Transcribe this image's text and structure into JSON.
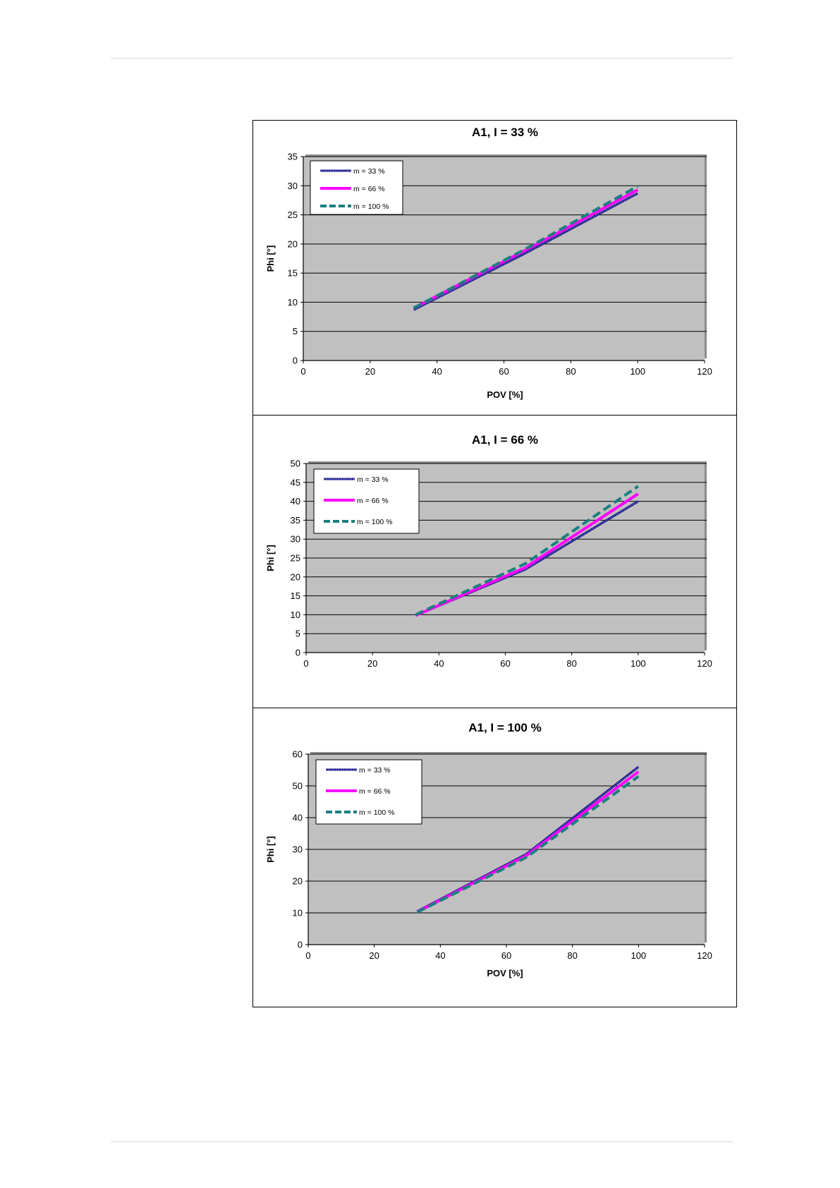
{
  "chart_data": [
    {
      "type": "line",
      "title": "A1, I = 33 %",
      "xlabel": "POV [%]",
      "ylabel": "Phi [°]",
      "xlim": [
        0,
        120
      ],
      "ylim": [
        0,
        35
      ],
      "xticks": [
        0,
        20,
        40,
        60,
        80,
        100,
        120
      ],
      "yticks": [
        0,
        5,
        10,
        15,
        20,
        25,
        30,
        35
      ],
      "grid": "horizontal",
      "legend": "top-left",
      "series": [
        {
          "name": "m = 33 %",
          "color": "#1a1a80",
          "style": "dotted-marker",
          "x": [
            33,
            66,
            100
          ],
          "y": [
            8.7,
            18.3,
            28.7
          ]
        },
        {
          "name": "m = 66 %",
          "color": "#ff00ff",
          "style": "solid",
          "x": [
            33,
            66,
            100
          ],
          "y": [
            9.0,
            18.8,
            29.3
          ]
        },
        {
          "name": "m = 100 %",
          "color": "#1a7f7f",
          "style": "dashed",
          "x": [
            33,
            66,
            100
          ],
          "y": [
            9.0,
            19.0,
            29.9
          ]
        }
      ]
    },
    {
      "type": "line",
      "title": "A1,  I = 66 %",
      "xlabel": "",
      "ylabel": "Phi [°]",
      "xlim": [
        0,
        120
      ],
      "ylim": [
        0,
        50
      ],
      "xticks": [
        0,
        20,
        40,
        60,
        80,
        100,
        120
      ],
      "yticks": [
        0,
        5,
        10,
        15,
        20,
        25,
        30,
        35,
        40,
        45,
        50
      ],
      "grid": "horizontal",
      "legend": "top-left",
      "series": [
        {
          "name": "m = 33 %",
          "color": "#1a1a80",
          "style": "dotted-marker",
          "x": [
            33,
            66,
            100
          ],
          "y": [
            9.8,
            22.0,
            40.0
          ]
        },
        {
          "name": "m = 66 %",
          "color": "#ff00ff",
          "style": "solid",
          "x": [
            33,
            66,
            100
          ],
          "y": [
            9.8,
            22.5,
            42.0
          ]
        },
        {
          "name": "m = 100 %",
          "color": "#1a7f7f",
          "style": "dashed",
          "x": [
            33,
            66,
            100
          ],
          "y": [
            10.0,
            23.5,
            44.0
          ]
        }
      ]
    },
    {
      "type": "line",
      "title": "A1,  I = 100 %",
      "xlabel": "POV [%]",
      "ylabel": "Phi [°]",
      "xlim": [
        0,
        120
      ],
      "ylim": [
        0,
        60
      ],
      "xticks": [
        0,
        20,
        40,
        60,
        80,
        100,
        120
      ],
      "yticks": [
        0,
        10,
        20,
        30,
        40,
        50,
        60
      ],
      "grid": "horizontal",
      "legend": "top-left",
      "series": [
        {
          "name": "m = 33 %",
          "color": "#1a1a80",
          "style": "dotted-marker",
          "x": [
            33,
            66,
            100
          ],
          "y": [
            10.5,
            28.5,
            56.0
          ]
        },
        {
          "name": "m = 66 %",
          "color": "#ff00ff",
          "style": "solid",
          "x": [
            33,
            66,
            100
          ],
          "y": [
            10.3,
            28.0,
            54.5
          ]
        },
        {
          "name": "m = 100 %",
          "color": "#1a7f7f",
          "style": "dashed",
          "x": [
            33,
            66,
            100
          ],
          "y": [
            10.2,
            27.5,
            53.0
          ]
        }
      ]
    }
  ]
}
